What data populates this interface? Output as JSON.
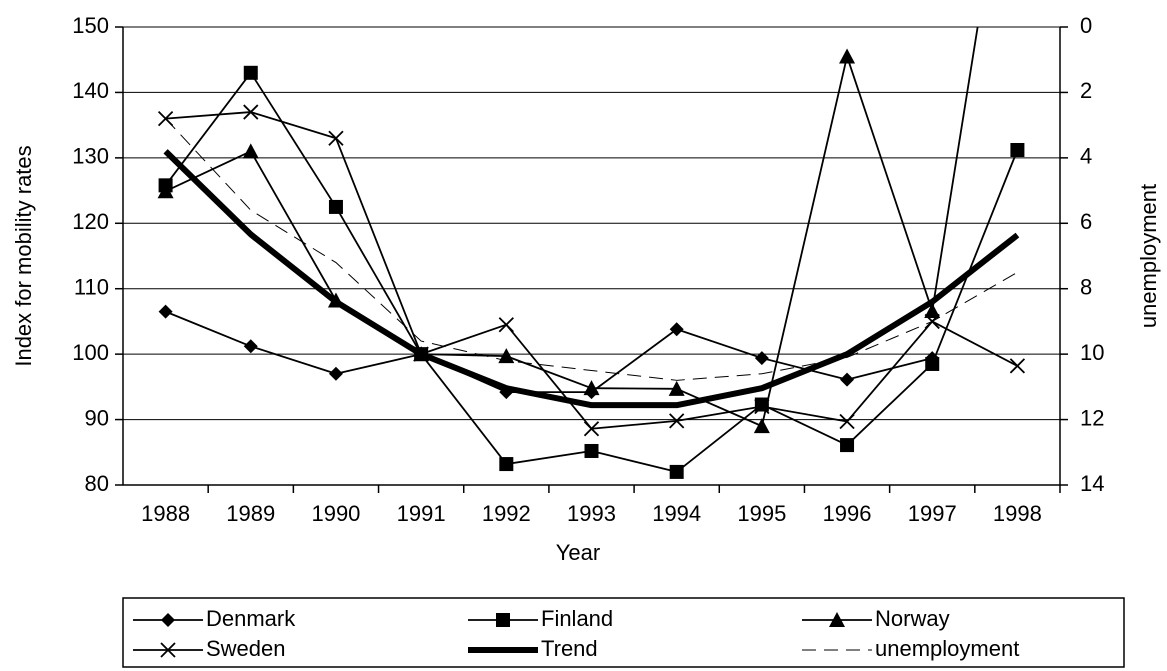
{
  "chart_data": {
    "type": "line",
    "x_label": "Year",
    "y_label": "Index for mobility rates",
    "y2_label": "unemployment",
    "categories": [
      "1988",
      "1989",
      "1990",
      "1991",
      "1992",
      "1993",
      "1994",
      "1995",
      "1996",
      "1997",
      "1998"
    ],
    "ylim": [
      80,
      150
    ],
    "yticks": [
      80,
      90,
      100,
      110,
      120,
      130,
      140,
      150
    ],
    "y2lim": [
      14,
      0
    ],
    "y2ticks": [
      0,
      2,
      4,
      6,
      8,
      10,
      12,
      14
    ],
    "grid": true,
    "legend": "bottom",
    "series": [
      {
        "name": "Denmark",
        "color": "#000000",
        "marker": "diamond",
        "style": "thin",
        "values": [
          106.5,
          101.2,
          97,
          100,
          94.2,
          94.2,
          103.8,
          99.4,
          96.1,
          99.4,
          null
        ]
      },
      {
        "name": "Finland",
        "color": "#000000",
        "marker": "square",
        "style": "thin",
        "values": [
          125.8,
          143,
          122.5,
          100,
          83.2,
          85.2,
          82,
          92.3,
          86.1,
          98.5,
          131.2
        ]
      },
      {
        "name": "Norway",
        "color": "#000000",
        "marker": "triangle",
        "style": "thin",
        "values": [
          124.9,
          131,
          108.2,
          100,
          99.7,
          94.8,
          94.7,
          89,
          145.5,
          106.6,
          188
        ]
      },
      {
        "name": "Sweden",
        "color": "#000000",
        "marker": "cross",
        "style": "thin",
        "values": [
          136,
          137,
          133,
          100,
          104.5,
          88.6,
          89.8,
          92,
          89.7,
          105,
          98.2
        ]
      },
      {
        "name": "Trend",
        "color": "#000000",
        "marker": "none",
        "style": "thick",
        "values": [
          131,
          118.3,
          108,
          100,
          94.8,
          92.2,
          92.2,
          94.8,
          100,
          108,
          118.2
        ]
      },
      {
        "name": "unemployment",
        "color": "#000000",
        "marker": "none",
        "style": "dashed",
        "axis": "y2",
        "values": [
          2.8,
          5.6,
          7.2,
          9.6,
          10.2,
          10.5,
          10.8,
          10.6,
          10.1,
          9,
          7.5
        ]
      }
    ]
  }
}
